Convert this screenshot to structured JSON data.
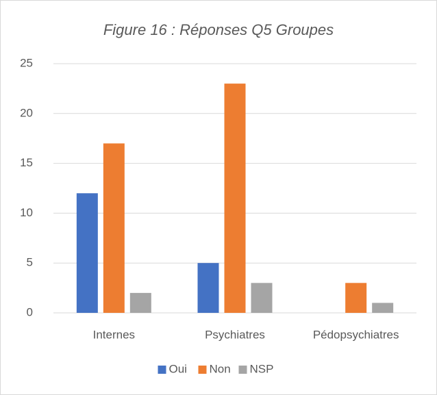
{
  "chart_data": {
    "type": "bar",
    "title": "Figure 16 : Réponses Q5 Groupes",
    "categories": [
      "Internes",
      "Psychiatres",
      "Pédopsychiatres"
    ],
    "series": [
      {
        "name": "Oui",
        "color": "#4472c4",
        "values": [
          12,
          5,
          0
        ]
      },
      {
        "name": "Non",
        "color": "#ed7d31",
        "values": [
          17,
          23,
          3
        ]
      },
      {
        "name": "NSP",
        "color": "#a5a5a5",
        "values": [
          2,
          3,
          1
        ]
      }
    ],
    "ylim": [
      0,
      25
    ],
    "yticks": [
      0,
      5,
      10,
      15,
      20,
      25
    ],
    "grid": true,
    "legend": "bottom"
  }
}
